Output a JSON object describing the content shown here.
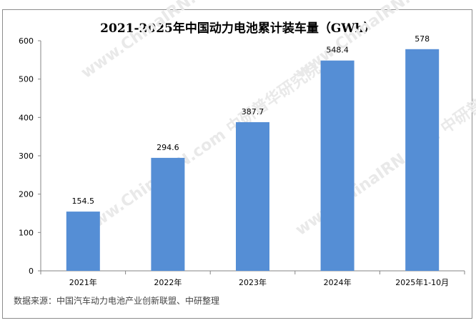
{
  "chart_data": {
    "type": "bar",
    "title": "2021-2025年中国动力电池累计装车量（GWh）",
    "categories": [
      "2021年",
      "2022年",
      "2023年",
      "2024年",
      "2025年1-10月"
    ],
    "values": [
      154.5,
      294.6,
      387.7,
      548.4,
      578
    ],
    "data_labels": [
      "154.5",
      "294.6",
      "387.7",
      "548.4",
      "578"
    ],
    "ylim": [
      0,
      600
    ],
    "yticks": [
      "0",
      "100",
      "200",
      "300",
      "400",
      "500",
      "600"
    ],
    "xlabel": "",
    "ylabel": "",
    "grid": false,
    "bar_color": "#558ed5"
  },
  "source": "数据来源：中国汽车动力电池产业创新联盟、中研整理",
  "watermark": "www.ChinaIRN.com 中研普华研究院"
}
